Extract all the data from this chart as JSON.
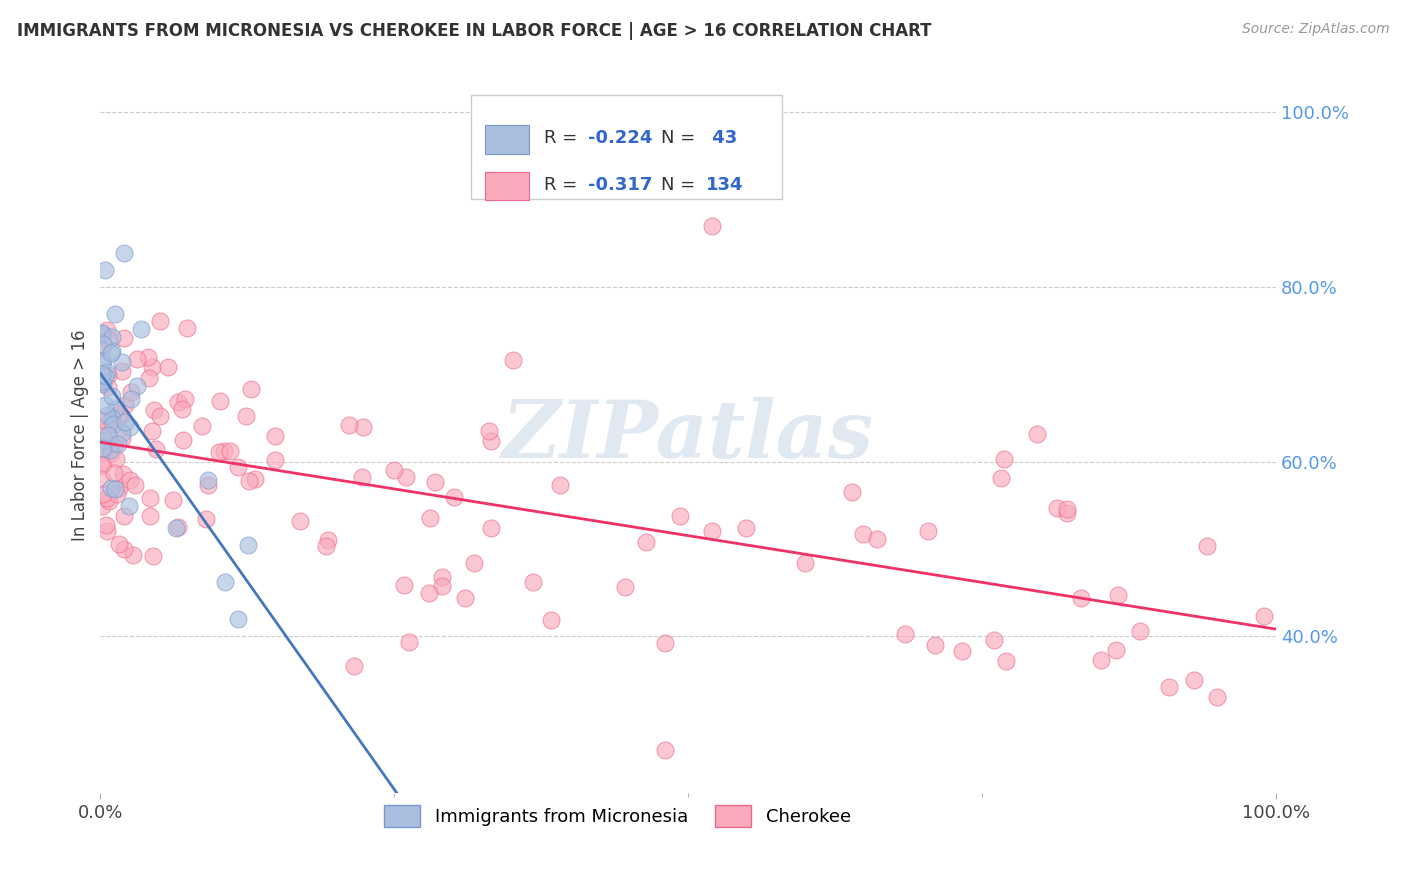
{
  "title": "IMMIGRANTS FROM MICRONESIA VS CHEROKEE IN LABOR FORCE | AGE > 16 CORRELATION CHART",
  "source": "Source: ZipAtlas.com",
  "ylabel": "In Labor Force | Age > 16",
  "right_yticks": [
    0.4,
    0.6,
    0.8,
    1.0
  ],
  "right_yticklabels": [
    "40.0%",
    "60.0%",
    "80.0%",
    "100.0%"
  ],
  "xlim": [
    0.0,
    1.0
  ],
  "ylim": [
    0.22,
    1.04
  ],
  "legend_blue_R": "-0.224",
  "legend_blue_N": "43",
  "legend_pink_R": "-0.317",
  "legend_pink_N": "134",
  "blue_face_color": "#AABFDF",
  "blue_edge_color": "#7799CC",
  "pink_face_color": "#F9AABB",
  "pink_edge_color": "#EE6688",
  "blue_line_color": "#4477BB",
  "pink_line_color": "#EE3366",
  "dashed_line_color": "#99BBDD",
  "title_color": "#333333",
  "right_axis_color": "#5599EE",
  "grid_color": "#CCCCCC",
  "watermark_color": "#C8D8E8",
  "legend_R_color": "#3366CC",
  "legend_N_color": "#3366CC",
  "legend_label_blue": "Immigrants from Micronesia",
  "legend_label_pink": "Cherokee"
}
